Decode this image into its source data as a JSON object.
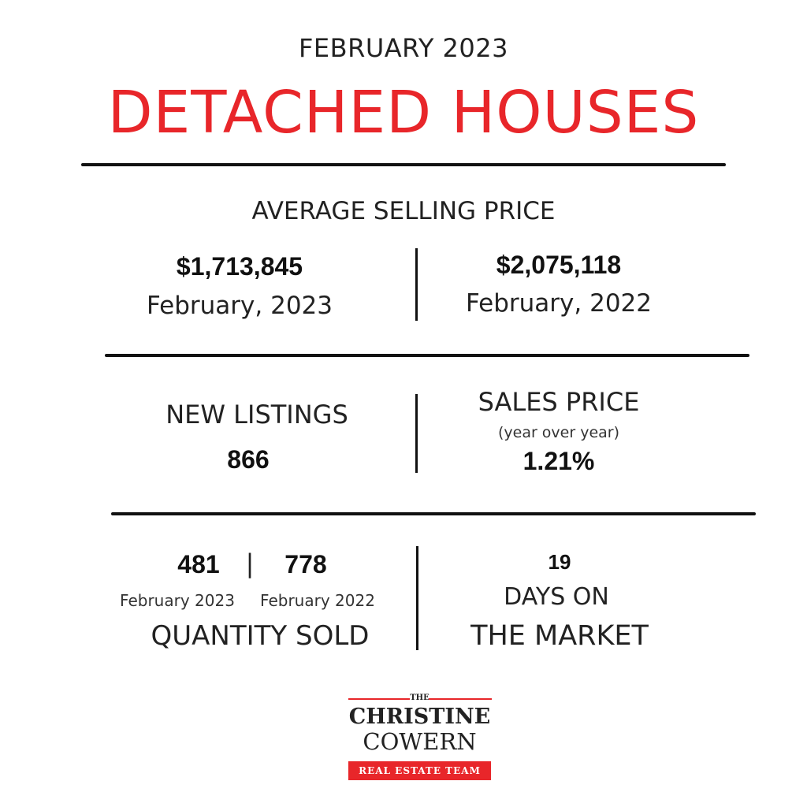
{
  "header": {
    "period": "FEBRUARY 2023",
    "title": "DETACHED HOUSES",
    "accent_color": "#e8262a"
  },
  "average_selling_price": {
    "heading": "AVERAGE SELLING PRICE",
    "current": {
      "value": "$1,713,845",
      "label": "February, 2023"
    },
    "previous": {
      "value": "$2,075,118",
      "label": "February, 2022"
    }
  },
  "new_listings": {
    "heading": "NEW LISTINGS",
    "value": "866"
  },
  "sales_price": {
    "heading": "SALES PRICE",
    "note": "(year over year)",
    "value": "1.21%"
  },
  "quantity_sold": {
    "current_value": "481",
    "separator": "|",
    "previous_value": "778",
    "current_label": "February 2023",
    "previous_label": "February 2022",
    "heading": "QUANTITY SOLD"
  },
  "days_on_market": {
    "value": "19",
    "line1": "DAYS ON",
    "line2": "THE MARKET"
  },
  "logo": {
    "the": "THE",
    "name_line1": "CHRISTINE",
    "name_line2": "COWERN",
    "tagline": "REAL ESTATE TEAM"
  }
}
